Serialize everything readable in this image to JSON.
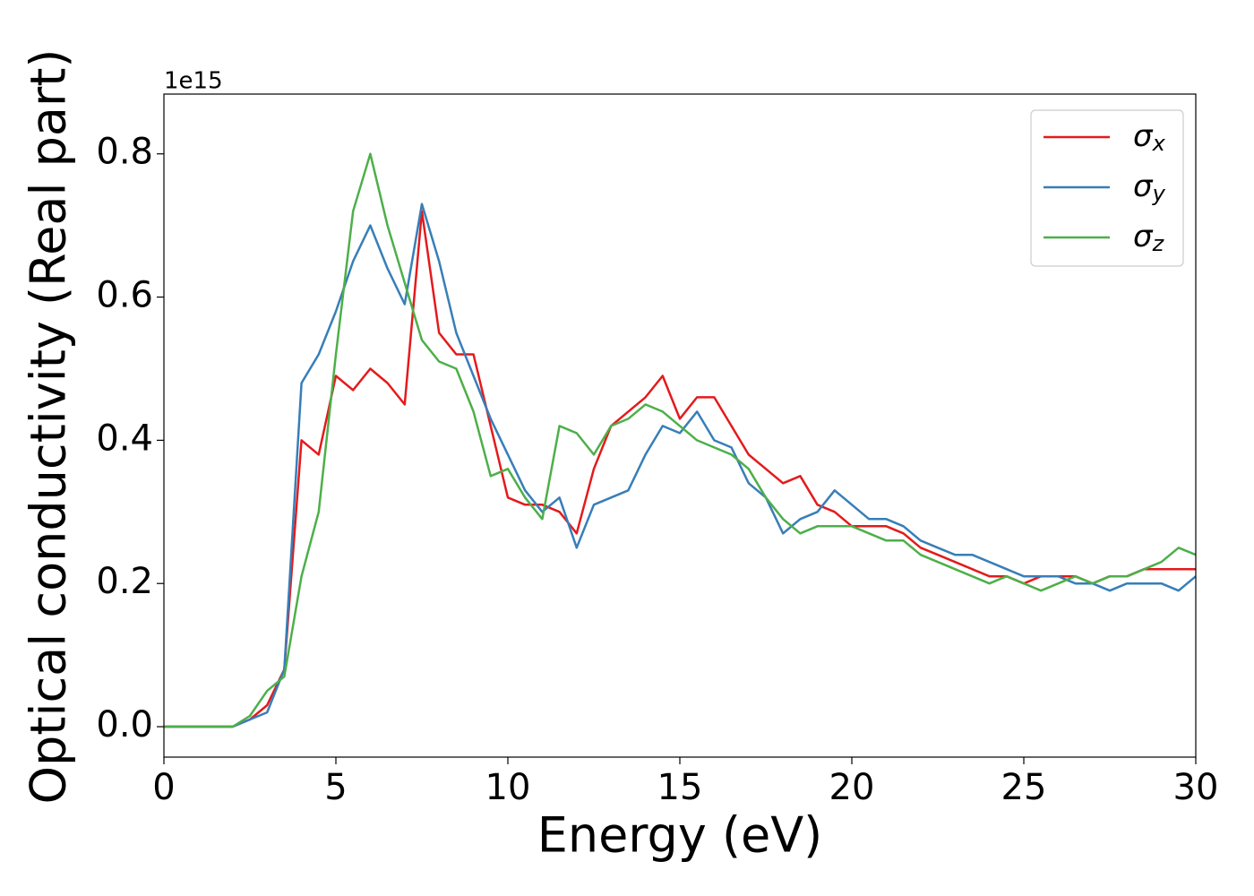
{
  "chart_data": {
    "type": "line",
    "x_label": "Energy (eV)",
    "y_label": "Optical conductivity (Real part)",
    "y_offset_text": "1e15",
    "xlim": [
      0,
      30
    ],
    "ylim": [
      -0.0425,
      0.8835
    ],
    "xticks": [
      0,
      5,
      10,
      15,
      20,
      25,
      30
    ],
    "yticks": [
      {
        "value": 0,
        "label": "0.0"
      },
      0.2,
      0.4,
      0.6,
      0.8
    ],
    "legend": "upper right",
    "x": [
      0,
      0.5,
      1,
      1.5,
      2,
      2.5,
      3,
      3.5,
      4,
      4.5,
      5,
      5.5,
      6,
      6.5,
      7,
      7.5,
      8,
      8.5,
      9,
      9.5,
      10,
      10.5,
      11,
      11.5,
      12,
      12.5,
      13,
      13.5,
      14,
      14.5,
      15,
      15.5,
      16,
      16.5,
      17,
      17.5,
      18,
      18.5,
      19,
      19.5,
      20,
      20.5,
      21,
      21.5,
      22,
      22.5,
      23,
      23.5,
      24,
      24.5,
      25,
      25.5,
      26,
      26.5,
      27,
      27.5,
      28,
      28.5,
      29,
      29.5,
      30
    ],
    "series": [
      {
        "name": "σx",
        "color": "#e41a1c",
        "values": [
          0,
          0,
          0,
          0,
          0,
          0.01,
          0.03,
          0.08,
          0.4,
          0.38,
          0.49,
          0.47,
          0.5,
          0.48,
          0.45,
          0.72,
          0.55,
          0.52,
          0.52,
          0.42,
          0.32,
          0.31,
          0.31,
          0.3,
          0.27,
          0.36,
          0.42,
          0.44,
          0.46,
          0.49,
          0.43,
          0.46,
          0.46,
          0.42,
          0.38,
          0.36,
          0.34,
          0.35,
          0.31,
          0.3,
          0.28,
          0.28,
          0.28,
          0.27,
          0.25,
          0.24,
          0.23,
          0.22,
          0.21,
          0.21,
          0.2,
          0.21,
          0.21,
          0.21,
          0.2,
          0.21,
          0.21,
          0.22,
          0.22,
          0.22,
          0.22
        ]
      },
      {
        "name": "σy",
        "color": "#377eb8",
        "values": [
          0,
          0,
          0,
          0,
          0,
          0.01,
          0.02,
          0.08,
          0.48,
          0.52,
          0.58,
          0.65,
          0.7,
          0.64,
          0.59,
          0.73,
          0.65,
          0.55,
          0.49,
          0.43,
          0.38,
          0.33,
          0.3,
          0.32,
          0.25,
          0.31,
          0.32,
          0.33,
          0.38,
          0.42,
          0.41,
          0.44,
          0.4,
          0.39,
          0.34,
          0.32,
          0.27,
          0.29,
          0.3,
          0.33,
          0.31,
          0.29,
          0.29,
          0.28,
          0.26,
          0.25,
          0.24,
          0.24,
          0.23,
          0.22,
          0.21,
          0.21,
          0.21,
          0.2,
          0.2,
          0.19,
          0.2,
          0.2,
          0.2,
          0.19,
          0.21
        ]
      },
      {
        "name": "σz",
        "color": "#4daf4a",
        "values": [
          0,
          0,
          0,
          0,
          0,
          0.015,
          0.05,
          0.07,
          0.21,
          0.3,
          0.52,
          0.72,
          0.8,
          0.7,
          0.62,
          0.54,
          0.51,
          0.5,
          0.44,
          0.35,
          0.36,
          0.32,
          0.29,
          0.42,
          0.41,
          0.38,
          0.42,
          0.43,
          0.45,
          0.44,
          0.42,
          0.4,
          0.39,
          0.38,
          0.36,
          0.32,
          0.29,
          0.27,
          0.28,
          0.28,
          0.28,
          0.27,
          0.26,
          0.26,
          0.24,
          0.23,
          0.22,
          0.21,
          0.2,
          0.21,
          0.2,
          0.19,
          0.2,
          0.21,
          0.2,
          0.21,
          0.21,
          0.22,
          0.23,
          0.25,
          0.24
        ]
      }
    ]
  }
}
